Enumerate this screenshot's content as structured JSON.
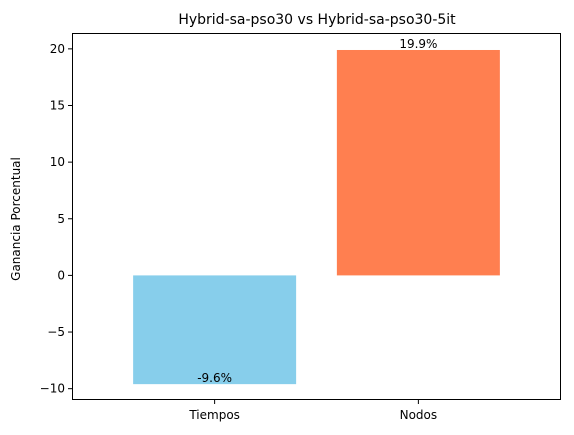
{
  "chart_data": {
    "type": "bar",
    "title": "Hybrid-sa-pso30 vs Hybrid-sa-pso30-5it",
    "xlabel": "",
    "ylabel": "Ganancia Porcentual",
    "categories": [
      "Tiempos",
      "Nodos"
    ],
    "values": [
      -9.6,
      19.9
    ],
    "data_labels": [
      "-9.6%",
      "19.9%"
    ],
    "bar_colors": [
      "#87CEEB",
      "#FF7F50"
    ],
    "ylim": [
      -11.0,
      21.4
    ],
    "yticks": [
      -10,
      -5,
      0,
      5,
      10,
      15,
      20
    ],
    "ytick_labels": [
      "−10",
      "−5",
      "0",
      "5",
      "10",
      "15",
      "20"
    ],
    "grid": false,
    "legend": "none"
  }
}
